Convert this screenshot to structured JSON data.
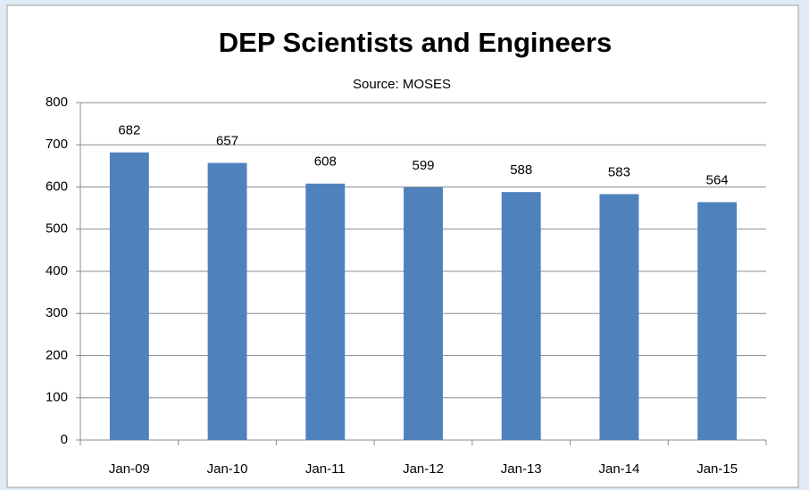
{
  "chart_data": {
    "type": "bar",
    "title": "DEP Scientists and Engineers",
    "subtitle": "Source: MOSES",
    "categories": [
      "Jan-09",
      "Jan-10",
      "Jan-11",
      "Jan-12",
      "Jan-13",
      "Jan-14",
      "Jan-15"
    ],
    "values": [
      682,
      657,
      608,
      599,
      588,
      583,
      564
    ],
    "color": "#4f81bd",
    "ylim": [
      0,
      800
    ],
    "yticks": [
      0,
      100,
      200,
      300,
      400,
      500,
      600,
      700,
      800
    ],
    "grid": true,
    "data_labels": true
  }
}
